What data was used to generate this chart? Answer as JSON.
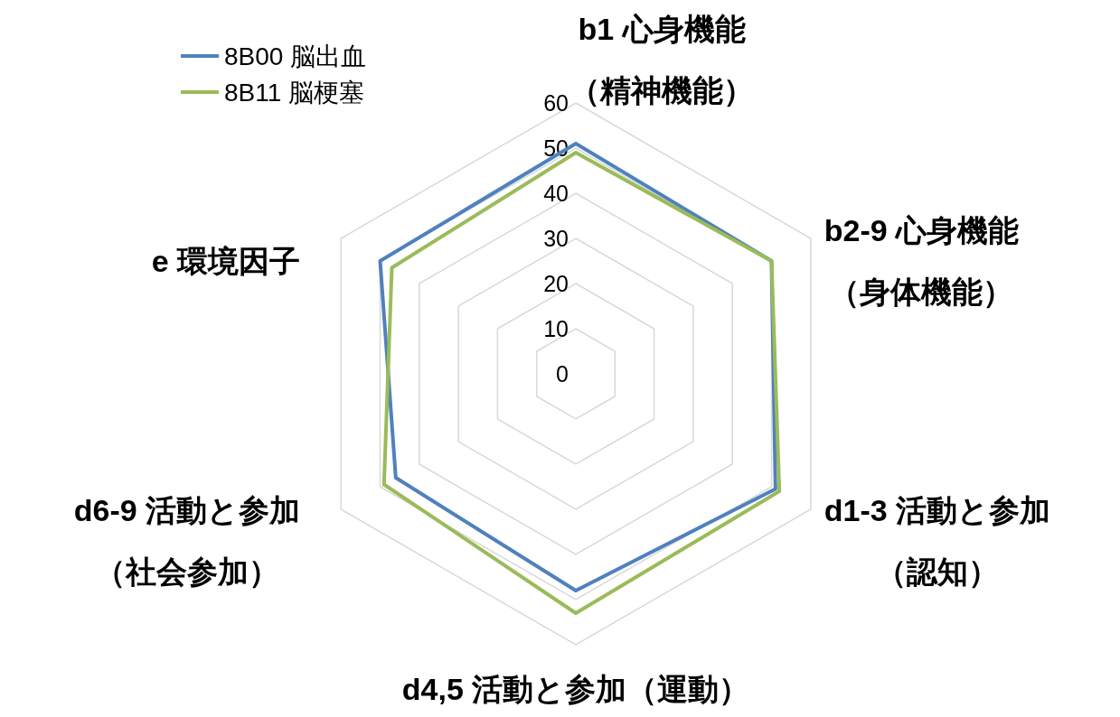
{
  "chart_data": {
    "type": "radar",
    "categories": [
      "b1 心身機能（精神機能）",
      "b2-9 心身機能（身体機能）",
      "d1-3 活動と参加（認知）",
      "d4,5 活動と参加（運動）",
      "d6-9 活動と参加（社会参加）",
      "e 環境因子"
    ],
    "series": [
      {
        "name": "8B00 脳出血",
        "color": "#4f81bd",
        "values": [
          51,
          50,
          51,
          48,
          46,
          50
        ]
      },
      {
        "name": "8B11 脳梗塞",
        "color": "#9bbb59",
        "values": [
          49,
          50,
          52,
          53,
          49,
          47
        ]
      }
    ],
    "ylim": [
      0,
      60
    ],
    "yticks": [
      0,
      10,
      20,
      30,
      40,
      50,
      60
    ],
    "grid": true,
    "legend": "top left",
    "marker": "none",
    "line_style": "solid"
  }
}
